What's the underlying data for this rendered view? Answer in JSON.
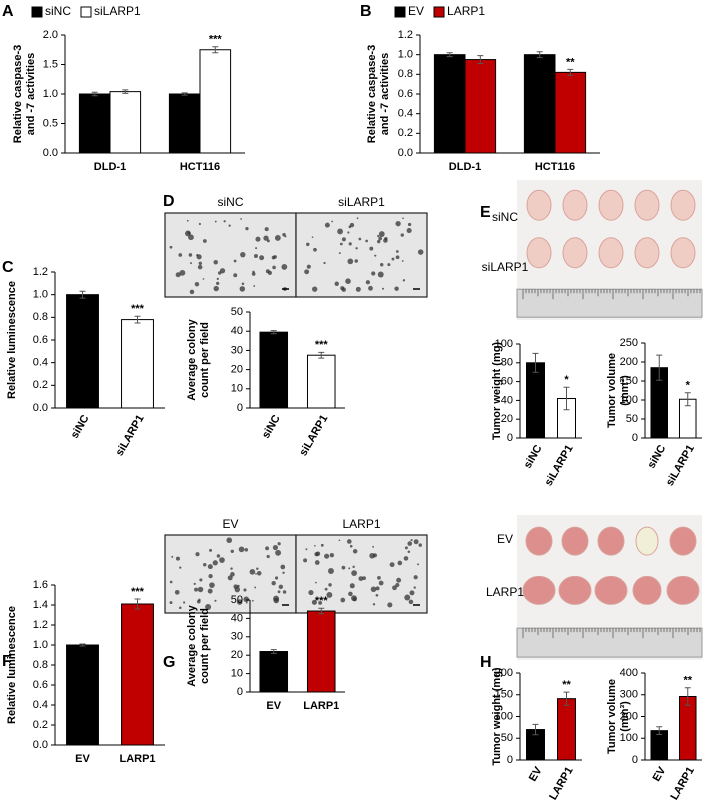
{
  "chart_data": [
    {
      "type": "bar",
      "panel": "A",
      "ylabel": [
        "Relative caspase-3",
        "and -7 activities"
      ],
      "legend": true,
      "categories": [
        "DLD-1",
        "HCT116"
      ],
      "series": [
        {
          "name": "siNC",
          "color": "#000000",
          "values": [
            1.0,
            1.0
          ],
          "errors": [
            0.03,
            0.02
          ]
        },
        {
          "name": "siLARP1",
          "color": "#ffffff",
          "values": [
            1.04,
            1.75
          ],
          "errors": [
            0.03,
            0.05
          ],
          "annotations": [
            null,
            "***"
          ]
        }
      ],
      "ylim": [
        0,
        2
      ],
      "yticks": [
        {
          "value": 0,
          "label": "0.0"
        },
        {
          "value": 0.5,
          "label": "0.5"
        },
        {
          "value": 1,
          "label": "1.0"
        },
        {
          "value": 1.5,
          "label": "1.5"
        },
        {
          "value": 2,
          "label": "2.0"
        }
      ]
    },
    {
      "type": "bar",
      "panel": "B",
      "ylabel": [
        "Relative caspase-3",
        "and -7 activities"
      ],
      "legend": true,
      "categories": [
        "DLD-1",
        "HCT116"
      ],
      "series": [
        {
          "name": "EV",
          "color": "#000000",
          "values": [
            1.0,
            1.0
          ],
          "errors": [
            0.02,
            0.03
          ]
        },
        {
          "name": "LARP1",
          "color": "#c00000",
          "values": [
            0.95,
            0.82
          ],
          "errors": [
            0.04,
            0.03
          ],
          "annotations": [
            null,
            "**"
          ]
        }
      ],
      "ylim": [
        0,
        1.2
      ],
      "yticks": [
        {
          "value": 0,
          "label": "0.0"
        },
        {
          "value": 0.2,
          "label": "0.2"
        },
        {
          "value": 0.4,
          "label": "0.4"
        },
        {
          "value": 0.6,
          "label": "0.6"
        },
        {
          "value": 0.8,
          "label": "0.8"
        },
        {
          "value": 1,
          "label": "1.0"
        },
        {
          "value": 1.2,
          "label": "1.2"
        }
      ]
    },
    {
      "type": "bar",
      "panel": "C",
      "ylabel": [
        "Relative luminescence"
      ],
      "categories": [
        "siNC",
        "siLARP1"
      ],
      "values": [
        1.0,
        0.78
      ],
      "errors": [
        0.03,
        0.03
      ],
      "colors": [
        "#000000",
        "#ffffff"
      ],
      "annotations": [
        null,
        "***"
      ],
      "ylim": [
        0,
        1.2
      ],
      "yticks": [
        {
          "value": 0,
          "label": "0.0"
        },
        {
          "value": 0.2,
          "label": "0.2"
        },
        {
          "value": 0.4,
          "label": "0.4"
        },
        {
          "value": 0.6,
          "label": "0.6"
        },
        {
          "value": 0.8,
          "label": "0.8"
        },
        {
          "value": 1,
          "label": "1.0"
        },
        {
          "value": 1.2,
          "label": "1.2"
        }
      ]
    },
    {
      "type": "bar",
      "panel": "D",
      "image_labels": [
        "siNC",
        "siLARP1"
      ],
      "ylabel": [
        "Average colony",
        "count per field"
      ],
      "categories": [
        "siNC",
        "siLARP1"
      ],
      "values": [
        39.5,
        27.5
      ],
      "errors": [
        0.8,
        1.5
      ],
      "colors": [
        "#000000",
        "#ffffff"
      ],
      "annotations": [
        null,
        "***"
      ],
      "ylim": [
        0,
        50
      ],
      "yticks": [
        0,
        10,
        20,
        30,
        40,
        50
      ]
    },
    {
      "type": "bar",
      "panel": "E",
      "image_labels": [
        "siNC",
        "siLARP1"
      ],
      "ylabel": [
        "Tumor weight (mg)"
      ],
      "categories": [
        "siNC",
        "siLARP1"
      ],
      "values": [
        80,
        42
      ],
      "errors": [
        10,
        12
      ],
      "colors": [
        "#000000",
        "#ffffff"
      ],
      "annotations": [
        null,
        "*"
      ],
      "ylim": [
        0,
        100
      ],
      "yticks": [
        0,
        20,
        40,
        60,
        80,
        100
      ]
    },
    {
      "type": "bar",
      "ylabel": [
        "Tumor volume",
        "(mm³)"
      ],
      "categories": [
        "siNC",
        "siLARP1"
      ],
      "values": [
        185,
        102
      ],
      "errors": [
        33,
        17
      ],
      "colors": [
        "#000000",
        "#ffffff"
      ],
      "annotations": [
        null,
        "*"
      ],
      "ylim": [
        0,
        250
      ],
      "yticks": [
        0,
        50,
        100,
        150,
        200,
        250
      ]
    },
    {
      "type": "bar",
      "panel": "F",
      "ylabel": [
        "Relative luminescence"
      ],
      "categories": [
        "EV",
        "LARP1"
      ],
      "values": [
        1.0,
        1.41
      ],
      "errors": [
        0.01,
        0.05
      ],
      "colors": [
        "#000000",
        "#c00000"
      ],
      "annotations": [
        null,
        "***"
      ],
      "ylim": [
        0,
        1.6
      ],
      "yticks": [
        {
          "value": 0,
          "label": "0.0"
        },
        {
          "value": 0.2,
          "label": "0.2"
        },
        {
          "value": 0.4,
          "label": "0.4"
        },
        {
          "value": 0.6,
          "label": "0.6"
        },
        {
          "value": 0.8,
          "label": "0.8"
        },
        {
          "value": 1,
          "label": "1.0"
        },
        {
          "value": 1.2,
          "label": "1.2"
        },
        {
          "value": 1.4,
          "label": "1.4"
        },
        {
          "value": 1.6,
          "label": "1.6"
        }
      ]
    },
    {
      "type": "bar",
      "panel": "G",
      "image_labels": [
        "EV",
        "LARP1"
      ],
      "ylabel": [
        "Average colony",
        "count per field"
      ],
      "categories": [
        "EV",
        "LARP1"
      ],
      "values": [
        22,
        44
      ],
      "errors": [
        1,
        1.5
      ],
      "colors": [
        "#000000",
        "#c00000"
      ],
      "annotations": [
        null,
        "***"
      ],
      "ylim": [
        0,
        50
      ],
      "yticks": [
        0,
        10,
        20,
        30,
        40,
        50
      ]
    },
    {
      "type": "bar",
      "panel": "H",
      "image_labels": [
        "EV",
        "LARP1"
      ],
      "ylabel": [
        "Tumor weight (mg)"
      ],
      "categories": [
        "EV",
        "LARP1"
      ],
      "values": [
        70,
        141
      ],
      "errors": [
        12,
        15
      ],
      "colors": [
        "#000000",
        "#c00000"
      ],
      "annotations": [
        null,
        "**"
      ],
      "ylim": [
        0,
        200
      ],
      "yticks": [
        0,
        50,
        100,
        150,
        200
      ]
    },
    {
      "type": "bar",
      "ylabel": [
        "Tumor volume",
        "(mm³)"
      ],
      "categories": [
        "EV",
        "LARP1"
      ],
      "values": [
        135,
        292
      ],
      "errors": [
        18,
        40
      ],
      "colors": [
        "#000000",
        "#c00000"
      ],
      "annotations": [
        null,
        "**"
      ],
      "ylim": [
        0,
        400
      ],
      "yticks": [
        0,
        100,
        200,
        300,
        400
      ]
    }
  ]
}
